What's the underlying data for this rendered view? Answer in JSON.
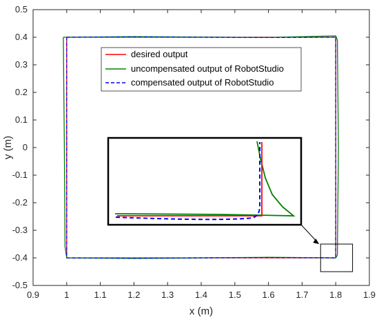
{
  "chart_data": {
    "type": "line",
    "title": "",
    "xlabel": "x (m)",
    "ylabel": "y (m)",
    "xlim": [
      0.9,
      1.9
    ],
    "ylim": [
      -0.5,
      0.5
    ],
    "xticks": [
      "0.9",
      "1",
      "1.1",
      "1.2",
      "1.3",
      "1.4",
      "1.5",
      "1.6",
      "1.7",
      "1.8",
      "1.9"
    ],
    "yticks": [
      "0.5",
      "0.4",
      "0.3",
      "0.2",
      "0.1",
      "0",
      "-0.1",
      "-0.2",
      "-0.3",
      "-0.4",
      "-0.5"
    ],
    "grid": false,
    "legend_position": "top-center",
    "series": [
      {
        "name": "desired output",
        "color": "#ff0000",
        "style": "solid",
        "x": [
          1.0,
          1.8,
          1.8,
          1.0,
          1.0
        ],
        "y": [
          0.4,
          0.4,
          -0.4,
          -0.4,
          0.4
        ]
      },
      {
        "name": "uncompensated output of RobotStudio",
        "color": "#008000",
        "style": "solid",
        "x": [
          0.99,
          1.2,
          1.6,
          1.8,
          1.805,
          1.808,
          1.805,
          1.8,
          1.6,
          1.2,
          1.0,
          0.995,
          0.993,
          0.99
        ],
        "y": [
          0.4,
          0.402,
          0.399,
          0.405,
          0.39,
          0.0,
          -0.39,
          -0.4,
          -0.398,
          -0.402,
          -0.4,
          -0.36,
          0.0,
          0.4
        ]
      },
      {
        "name": "compensated output of RobotStudio",
        "color": "#0000ff",
        "style": "dashed",
        "x": [
          1.0,
          1.2,
          1.6,
          1.8,
          1.8,
          1.8,
          1.8,
          1.6,
          1.2,
          1.0,
          1.0,
          1.0
        ],
        "y": [
          0.4,
          0.401,
          0.399,
          0.4,
          0.0,
          -0.39,
          -0.4,
          -0.399,
          -0.401,
          -0.4,
          0.0,
          0.4
        ]
      }
    ],
    "annotations": [
      {
        "type": "zoom-box",
        "x": [
          1.755,
          1.85
        ],
        "y": [
          -0.45,
          -0.35
        ]
      }
    ]
  }
}
